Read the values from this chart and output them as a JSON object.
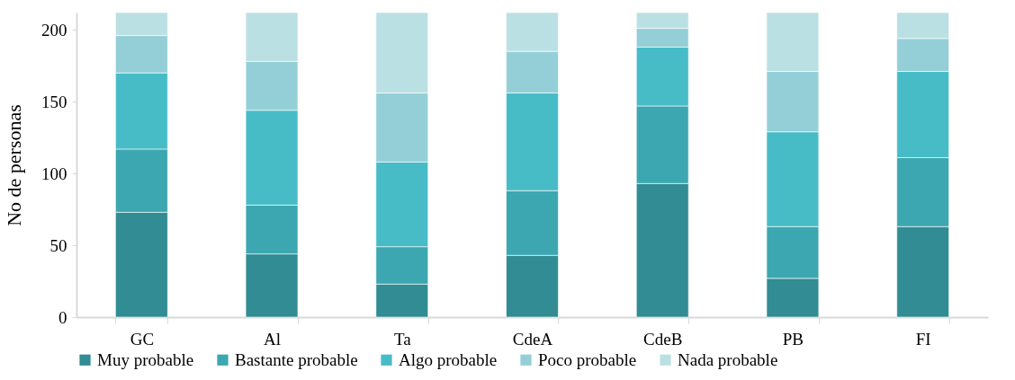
{
  "chart_data": {
    "type": "bar",
    "stacked": true,
    "ylabel": "No de personas",
    "categories": [
      "GC",
      "Al",
      "Ta",
      "CdeA",
      "CdeB",
      "PB",
      "FI"
    ],
    "series": [
      {
        "name": "Muy probable",
        "color": "#318c93",
        "values": [
          73,
          44,
          23,
          43,
          93,
          27,
          63
        ]
      },
      {
        "name": "Bastante probable",
        "color": "#3ca7b0",
        "values": [
          44,
          34,
          26,
          45,
          54,
          36,
          48
        ]
      },
      {
        "name": "Algo probable",
        "color": "#47bcc7",
        "values": [
          53,
          66,
          59,
          68,
          41,
          66,
          60
        ]
      },
      {
        "name": "Poco probable",
        "color": "#94cfd7",
        "values": [
          26,
          34,
          48,
          29,
          13,
          42,
          23
        ]
      },
      {
        "name": "Nada probable",
        "color": "#bbe0e3",
        "values": [
          16,
          34,
          56,
          27,
          11,
          41,
          18
        ]
      }
    ],
    "ylim": [
      0,
      212
    ],
    "yticks": [
      0,
      50,
      100,
      150,
      200
    ],
    "grid": false,
    "legend": "bottom"
  }
}
